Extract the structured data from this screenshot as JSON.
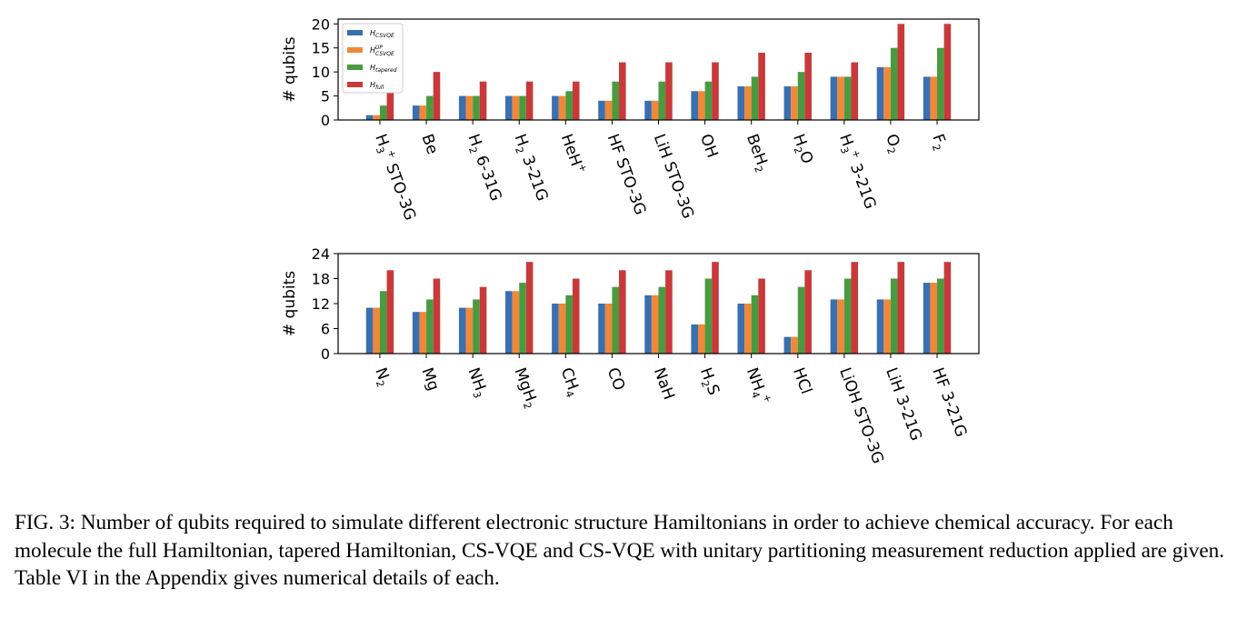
{
  "colors": {
    "H_CSVQE": "#3a6fb0",
    "H_CSVQE_UP": "#f0883a",
    "H_tapered": "#4a9a3f",
    "H_full": "#c8393a"
  },
  "caption": "FIG. 3: Number of qubits required to simulate different electronic structure Hamiltonians in order to achieve chemical accuracy. For each molecule the full Hamiltonian, tapered Hamiltonian, CS-VQE and CS-VQE with unitary partitioning measurement reduction applied are given. Table VI in the Appendix gives numerical details of each.",
  "chart_data": [
    {
      "type": "bar",
      "ylabel": "# qubits",
      "ylim": [
        0,
        21
      ],
      "yticks": [
        0,
        5,
        10,
        15,
        20
      ],
      "legend_position": "top-left",
      "categories": [
        "H3+ STO-3G",
        "Be",
        "H2 6-31G",
        "H2 3-21G",
        "HeH+",
        "HF STO-3G",
        "LiH STO-3G",
        "OH",
        "BeH2",
        "H2O",
        "H3+ 3-21G",
        "O2",
        "F2"
      ],
      "series": [
        {
          "name": "H_CSVQE",
          "values": [
            1,
            3,
            5,
            5,
            5,
            4,
            4,
            6,
            7,
            7,
            9,
            11,
            9
          ]
        },
        {
          "name": "H_CSVQE^UP",
          "values": [
            1,
            3,
            5,
            5,
            5,
            4,
            4,
            6,
            7,
            7,
            9,
            11,
            9
          ]
        },
        {
          "name": "H_tapered",
          "values": [
            3,
            5,
            5,
            5,
            6,
            8,
            8,
            8,
            9,
            10,
            9,
            15,
            15
          ]
        },
        {
          "name": "H_full",
          "values": [
            6,
            10,
            8,
            8,
            8,
            12,
            12,
            12,
            14,
            14,
            12,
            20,
            20
          ]
        }
      ]
    },
    {
      "type": "bar",
      "ylabel": "# qubits",
      "ylim": [
        0,
        24
      ],
      "yticks": [
        0,
        6,
        12,
        18,
        24
      ],
      "categories": [
        "N2",
        "Mg",
        "NH3",
        "MgH2",
        "CH4",
        "CO",
        "NaH",
        "H2S",
        "NH4+",
        "HCl",
        "LiOH STO-3G",
        "LiH 3-21G",
        "HF 3-21G"
      ],
      "series": [
        {
          "name": "H_CSVQE",
          "values": [
            11,
            10,
            11,
            15,
            12,
            12,
            14,
            7,
            12,
            4,
            13,
            13,
            17
          ]
        },
        {
          "name": "H_CSVQE^UP",
          "values": [
            11,
            10,
            11,
            15,
            12,
            12,
            14,
            7,
            12,
            4,
            13,
            13,
            17
          ]
        },
        {
          "name": "H_tapered",
          "values": [
            15,
            13,
            13,
            17,
            14,
            16,
            16,
            18,
            14,
            16,
            18,
            18,
            18
          ]
        },
        {
          "name": "H_full",
          "values": [
            20,
            18,
            16,
            22,
            18,
            20,
            20,
            22,
            18,
            20,
            22,
            22,
            22
          ]
        }
      ]
    }
  ]
}
